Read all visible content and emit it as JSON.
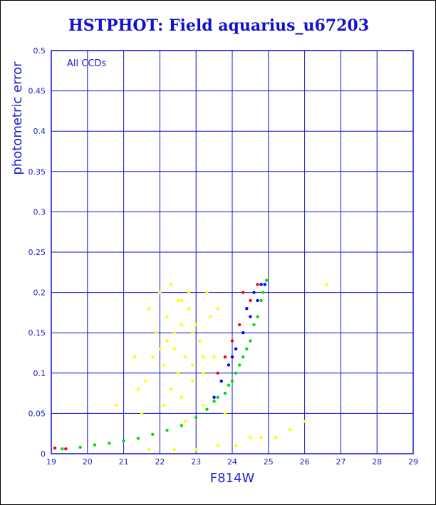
{
  "chart_data": {
    "type": "scatter",
    "title": "HSTPHOT: Field aquarius_u67203",
    "xlabel": "F814W",
    "ylabel": "photometric error",
    "annotation": "All CCDs",
    "xlim": [
      19,
      29
    ],
    "ylim": [
      0,
      0.5
    ],
    "xticks": [
      "19",
      "20",
      "21",
      "22",
      "23",
      "24",
      "25",
      "26",
      "27",
      "28",
      "29"
    ],
    "yticks": [
      "0",
      "0.05",
      "0.1",
      "0.15",
      "0.2",
      "0.25",
      "0.3",
      "0.35",
      "0.4",
      "0.45",
      "0.5"
    ],
    "grid": true,
    "colors": {
      "title": "#1010d0",
      "axis": "#1010d0",
      "grid": "#1010d0",
      "yellow": "#ffff00",
      "green": "#00dd00",
      "blue": "#0000ff",
      "red": "#ff0000"
    },
    "series": [
      {
        "color": "yellow",
        "points": [
          [
            22.3,
            0.21
          ],
          [
            22.5,
            0.19
          ],
          [
            22.8,
            0.2
          ],
          [
            22.2,
            0.17
          ],
          [
            22.6,
            0.16
          ],
          [
            22.9,
            0.15
          ],
          [
            23.1,
            0.14
          ],
          [
            22.4,
            0.13
          ],
          [
            22.7,
            0.12
          ],
          [
            22.1,
            0.11
          ],
          [
            22.5,
            0.1
          ],
          [
            22.9,
            0.09
          ],
          [
            23.2,
            0.1
          ],
          [
            22.3,
            0.08
          ],
          [
            22.6,
            0.07
          ],
          [
            22.0,
            0.13
          ],
          [
            21.8,
            0.12
          ],
          [
            21.6,
            0.09
          ],
          [
            21.4,
            0.08
          ],
          [
            23.4,
            0.17
          ],
          [
            23.6,
            0.18
          ],
          [
            23.3,
            0.2
          ],
          [
            22.0,
            0.2
          ],
          [
            21.7,
            0.18
          ],
          [
            23.5,
            0.12
          ],
          [
            22.8,
            0.18
          ],
          [
            22.4,
            0.15
          ],
          [
            22.2,
            0.14
          ],
          [
            23.0,
            0.16
          ],
          [
            23.2,
            0.12
          ],
          [
            22.6,
            0.19
          ],
          [
            22.9,
            0.11
          ],
          [
            22.1,
            0.06
          ],
          [
            21.9,
            0.15
          ],
          [
            21.3,
            0.12
          ],
          [
            20.8,
            0.06
          ],
          [
            21.5,
            0.05
          ],
          [
            22.7,
            0.04
          ],
          [
            23.8,
            0.05
          ],
          [
            24.5,
            0.02
          ],
          [
            24.8,
            0.02
          ],
          [
            25.2,
            0.02
          ],
          [
            25.6,
            0.03
          ],
          [
            26.0,
            0.04
          ],
          [
            23.6,
            0.01
          ],
          [
            24.1,
            0.01
          ],
          [
            23.0,
            0.005
          ],
          [
            22.4,
            0.005
          ],
          [
            21.7,
            0.005
          ],
          [
            26.6,
            0.21
          ],
          [
            23.2,
            0.06
          ]
        ]
      },
      {
        "color": "green",
        "points": [
          [
            19.3,
            0.006
          ],
          [
            19.8,
            0.008
          ],
          [
            20.2,
            0.011
          ],
          [
            20.6,
            0.013
          ],
          [
            21.0,
            0.016
          ],
          [
            21.4,
            0.019
          ],
          [
            21.8,
            0.024
          ],
          [
            22.2,
            0.029
          ],
          [
            22.6,
            0.035
          ],
          [
            23.0,
            0.045
          ],
          [
            23.3,
            0.055
          ],
          [
            23.6,
            0.07
          ],
          [
            23.9,
            0.085
          ],
          [
            24.1,
            0.1
          ],
          [
            24.3,
            0.12
          ],
          [
            24.5,
            0.14
          ],
          [
            24.7,
            0.17
          ],
          [
            24.85,
            0.2
          ],
          [
            24.95,
            0.215
          ],
          [
            24.6,
            0.16
          ],
          [
            24.4,
            0.13
          ],
          [
            24.2,
            0.11
          ],
          [
            24.0,
            0.09
          ],
          [
            23.8,
            0.075
          ],
          [
            23.5,
            0.065
          ],
          [
            24.8,
            0.19
          ],
          [
            24.9,
            0.21
          ]
        ]
      },
      {
        "color": "blue",
        "points": [
          [
            23.7,
            0.09
          ],
          [
            23.9,
            0.11
          ],
          [
            24.1,
            0.13
          ],
          [
            24.3,
            0.15
          ],
          [
            24.5,
            0.17
          ],
          [
            24.7,
            0.19
          ],
          [
            24.9,
            0.21
          ],
          [
            23.5,
            0.07
          ],
          [
            24.0,
            0.12
          ],
          [
            24.6,
            0.2
          ],
          [
            24.4,
            0.18
          ],
          [
            24.8,
            0.21
          ]
        ]
      },
      {
        "color": "red",
        "points": [
          [
            23.8,
            0.12
          ],
          [
            24.2,
            0.16
          ],
          [
            24.5,
            0.19
          ],
          [
            24.7,
            0.21
          ],
          [
            23.6,
            0.1
          ],
          [
            24.0,
            0.14
          ],
          [
            19.4,
            0.006
          ],
          [
            19.1,
            0.007
          ],
          [
            24.3,
            0.2
          ]
        ]
      }
    ]
  }
}
